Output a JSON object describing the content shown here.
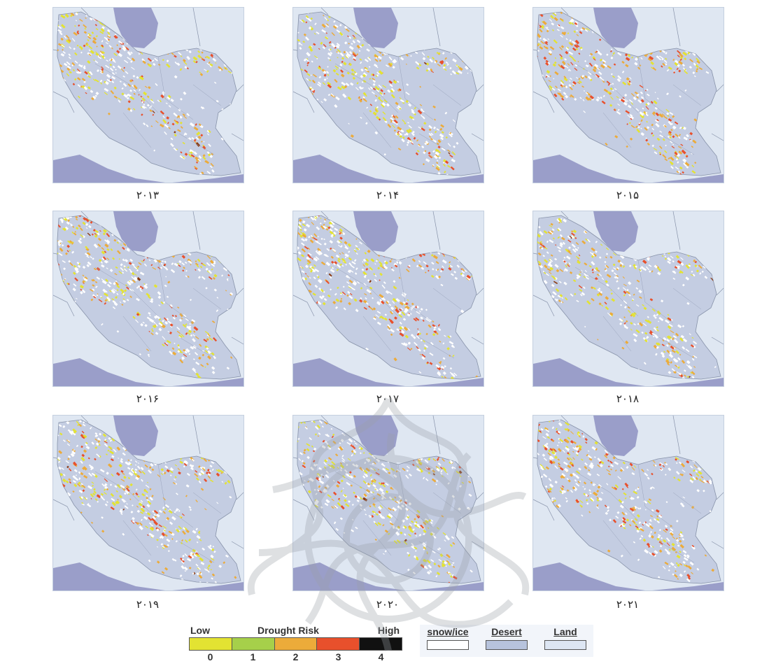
{
  "panels": [
    {
      "year": "۲۰۱۳",
      "intensity": 0.72
    },
    {
      "year": "۲۰۱۴",
      "intensity": 0.62
    },
    {
      "year": "۲۰۱۵",
      "intensity": 0.9
    },
    {
      "year": "۲۰۱۶",
      "intensity": 0.5
    },
    {
      "year": "۲۰۱۷",
      "intensity": 0.68
    },
    {
      "year": "۲۰۱۸",
      "intensity": 0.6
    },
    {
      "year": "۲۰۱۹",
      "intensity": 0.45
    },
    {
      "year": "۲۰۲۰",
      "intensity": 0.38
    },
    {
      "year": "۲۰۲۱",
      "intensity": 0.95
    }
  ],
  "legend": {
    "low_label": "Low",
    "title": "Drought Risk",
    "high_label": "High",
    "classes": [
      {
        "value": "0",
        "color": "#e3e332"
      },
      {
        "value": "1",
        "color": "#a6d04a"
      },
      {
        "value": "2",
        "color": "#ecab3a"
      },
      {
        "value": "3",
        "color": "#e8502c"
      },
      {
        "value": "4",
        "color": "#111111"
      }
    ]
  },
  "cover_legend": [
    {
      "label": "snow/ice",
      "color": "#ffffff"
    },
    {
      "label": "Desert",
      "color": "#b7c3dc"
    },
    {
      "label": "Land",
      "color": "#dde6f3"
    }
  ],
  "colors": {
    "sea": "#9a9ec9",
    "country_fill": "#c4cde2",
    "background_land": "#dfe7f2",
    "border_line": "#8893aa"
  }
}
